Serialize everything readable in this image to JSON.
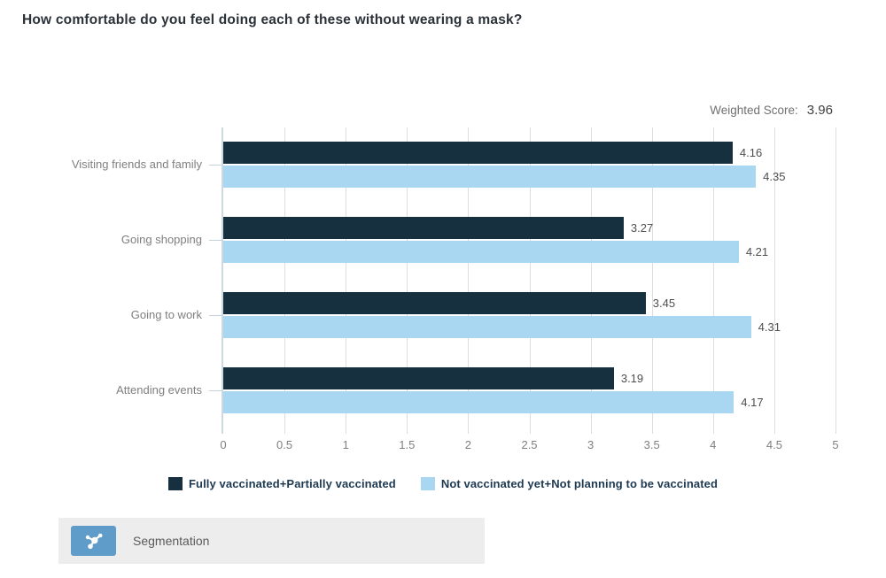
{
  "page": {
    "title": "How comfortable do you feel doing each of these without wearing a mask?",
    "weighted_score_label": "Weighted Score:",
    "weighted_score_value": "3.96"
  },
  "chart_data": {
    "type": "bar",
    "orientation": "horizontal",
    "title": "How comfortable do you feel doing each of these without wearing a mask?",
    "categories": [
      "Visiting friends and family",
      "Going shopping",
      "Going to work",
      "Attending events"
    ],
    "series": [
      {
        "name": "Fully vaccinated+Partially vaccinated",
        "color": "#16303f",
        "values": [
          4.16,
          3.27,
          3.45,
          3.19
        ]
      },
      {
        "name": "Not vaccinated yet+Not planning to be vaccinated",
        "color": "#a9d6f1",
        "values": [
          4.35,
          4.21,
          4.31,
          4.17
        ]
      }
    ],
    "xlabel": "",
    "ylabel": "",
    "xlim": [
      0,
      5
    ],
    "x_ticks": [
      0,
      0.5,
      1,
      1.5,
      2,
      2.5,
      3,
      3.5,
      4,
      4.5,
      5
    ],
    "grid": "vertical",
    "legend_position": "bottom",
    "weighted_score": 3.96,
    "colors": {
      "gridline": "#dedede",
      "zero_line": "#cdd9e1",
      "axis_text": "#7f7f7f",
      "value_text": "#4e4e4e",
      "legend_text": "#1d3951"
    }
  },
  "footer": {
    "segmentation_label": "Segmentation",
    "segmentation_icon": "segmentation-network-icon",
    "icon_bg": "#5f9cc9"
  }
}
